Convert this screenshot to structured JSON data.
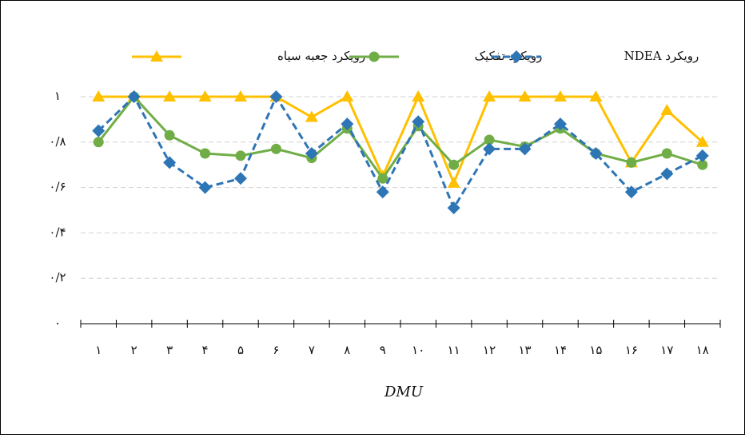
{
  "chart_data": {
    "type": "line",
    "xlabel": "DMU",
    "categories": [
      "۱",
      "۲",
      "۳",
      "۴",
      "۵",
      "۶",
      "۷",
      "۸",
      "۹",
      "۱۰",
      "۱۱",
      "۱۲",
      "۱۳",
      "۱۴",
      "۱۵",
      "۱۶",
      "۱۷",
      "۱۸"
    ],
    "series": [
      {
        "name": "رویکرد جعبه سیاه",
        "color": "#FFC000",
        "marker": "triangle",
        "dashed": false,
        "values": [
          1,
          1,
          1,
          1,
          1,
          1,
          0.91,
          1,
          0.65,
          1,
          0.62,
          1,
          1,
          1,
          1,
          0.71,
          0.94,
          0.8
        ]
      },
      {
        "name": "رویکرد تفکیک",
        "color": "#70AD47",
        "marker": "circle",
        "dashed": false,
        "values": [
          0.8,
          1,
          0.83,
          0.75,
          0.74,
          0.77,
          0.73,
          0.86,
          0.64,
          0.87,
          0.7,
          0.81,
          0.78,
          0.86,
          0.75,
          0.71,
          0.75,
          0.7
        ]
      },
      {
        "name": "رویکرد NDEA",
        "color": "#2E75B6",
        "marker": "diamond",
        "dashed": true,
        "values": [
          0.85,
          1,
          0.71,
          0.6,
          0.64,
          1,
          0.75,
          0.88,
          0.58,
          0.89,
          0.51,
          0.77,
          0.77,
          0.88,
          0.75,
          0.58,
          0.66,
          0.74
        ]
      }
    ],
    "ylim": [
      0,
      1
    ],
    "yticks": [
      {
        "value": 0,
        "label": "۰"
      },
      {
        "value": 0.2,
        "label": "۰/۲"
      },
      {
        "value": 0.4,
        "label": "۰/۴"
      },
      {
        "value": 0.6,
        "label": "۰/۶"
      },
      {
        "value": 0.8,
        "label": "۰/۸"
      },
      {
        "value": 1,
        "label": "۱"
      }
    ],
    "grid": true,
    "legend": "top"
  }
}
